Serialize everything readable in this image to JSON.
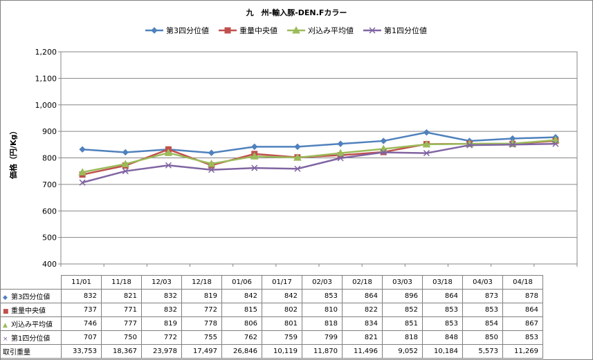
{
  "chart_data": {
    "type": "line",
    "title": "九　州-輸入豚-DEN.Fカラー",
    "ylabel": "価格（円/Kg）",
    "xlabel": "",
    "ylim": [
      400,
      1200
    ],
    "yticks": [
      400,
      500,
      600,
      700,
      800,
      900,
      1000,
      1100,
      1200
    ],
    "ytick_labels": [
      "400",
      "500",
      "600",
      "700",
      "800",
      "900",
      "1,000",
      "1,100",
      "1,200"
    ],
    "grid": true,
    "legend_position": "top",
    "categories": [
      "11/01",
      "11/18",
      "12/03",
      "12/18",
      "01/06",
      "01/17",
      "02/03",
      "02/18",
      "03/03",
      "03/18",
      "04/03",
      "04/18"
    ],
    "series": [
      {
        "name": "第3四分位値",
        "color": "#4f81bd",
        "marker": "diamond",
        "values": [
          832,
          821,
          832,
          819,
          842,
          842,
          853,
          864,
          896,
          864,
          873,
          878
        ],
        "labels": [
          "832",
          "821",
          "832",
          "819",
          "842",
          "842",
          "853",
          "864",
          "896",
          "864",
          "873",
          "878"
        ]
      },
      {
        "name": "重量中央値",
        "color": "#c0504d",
        "marker": "square",
        "values": [
          737,
          771,
          832,
          772,
          815,
          802,
          810,
          822,
          852,
          853,
          853,
          864
        ],
        "labels": [
          "737",
          "771",
          "832",
          "772",
          "815",
          "802",
          "810",
          "822",
          "852",
          "853",
          "853",
          "864"
        ]
      },
      {
        "name": "刈込み平均値",
        "color": "#9bbb59",
        "marker": "triangle",
        "values": [
          746,
          777,
          819,
          778,
          806,
          801,
          818,
          834,
          851,
          853,
          854,
          867
        ],
        "labels": [
          "746",
          "777",
          "819",
          "778",
          "806",
          "801",
          "818",
          "834",
          "851",
          "853",
          "854",
          "867"
        ]
      },
      {
        "name": "第1四分位値",
        "color": "#8064a2",
        "marker": "x",
        "values": [
          707,
          750,
          772,
          755,
          762,
          759,
          799,
          821,
          818,
          848,
          850,
          853
        ],
        "labels": [
          "707",
          "750",
          "772",
          "755",
          "762",
          "759",
          "799",
          "821",
          "818",
          "848",
          "850",
          "853"
        ]
      }
    ],
    "extra_row": {
      "name": "取引重量",
      "labels": [
        "33,753",
        "18,367",
        "23,978",
        "17,497",
        "26,846",
        "10,119",
        "11,870",
        "11,496",
        "9,052",
        "10,184",
        "5,573",
        "11,269"
      ]
    }
  }
}
